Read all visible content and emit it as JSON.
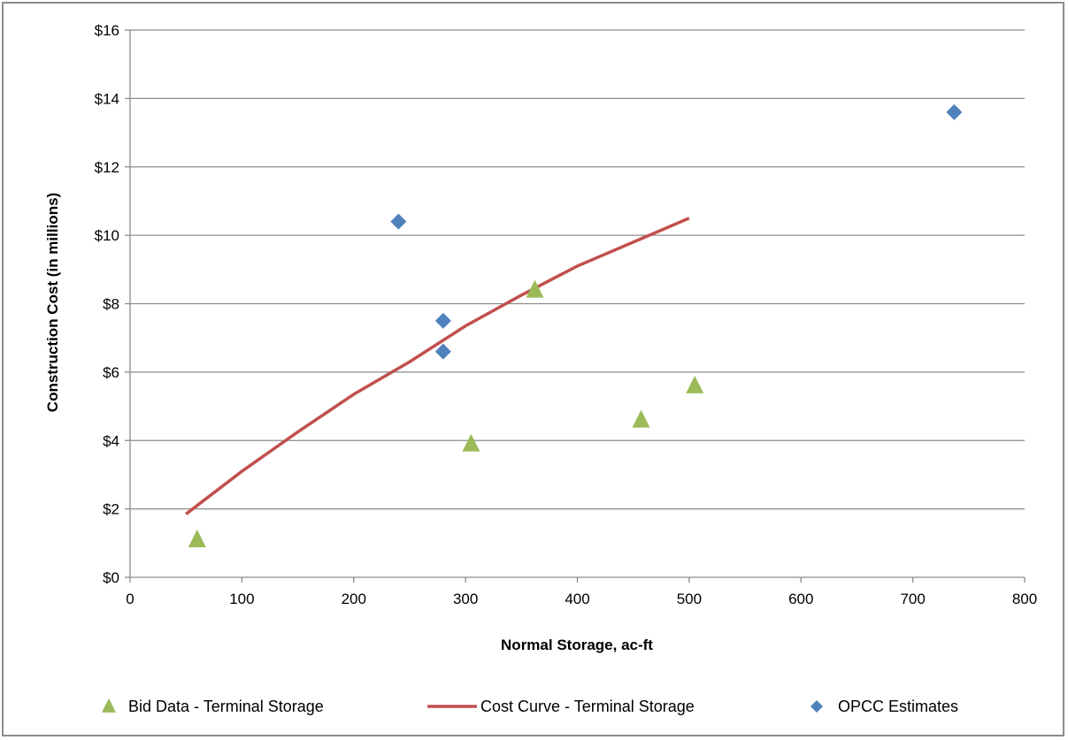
{
  "chart_data": {
    "type": "scatter",
    "title": "",
    "xlabel": "Normal Storage, ac-ft",
    "ylabel": "Construction Cost (in millions)",
    "xlim": [
      0,
      800
    ],
    "ylim": [
      0,
      16
    ],
    "x_ticks": [
      0,
      100,
      200,
      300,
      400,
      500,
      600,
      700,
      800
    ],
    "y_ticks": [
      0,
      2,
      4,
      6,
      8,
      10,
      12,
      14,
      16
    ],
    "x_tick_labels": [
      "0",
      "100",
      "200",
      "300",
      "400",
      "500",
      "600",
      "700",
      "800"
    ],
    "y_tick_labels": [
      "$0",
      "$2",
      "$4",
      "$6",
      "$8",
      "$10",
      "$12",
      "$14",
      "$16"
    ],
    "grid": "horizontal",
    "legend_position": "bottom",
    "series": [
      {
        "name": "Bid Data - Terminal Storage",
        "kind": "triangle",
        "color": "#9bbb59",
        "points": [
          [
            60,
            1.1
          ],
          [
            305,
            3.9
          ],
          [
            362,
            8.4
          ],
          [
            457,
            4.6
          ],
          [
            505,
            5.6
          ]
        ]
      },
      {
        "name": "Cost Curve - Terminal Storage",
        "kind": "line",
        "color": "#c0504d",
        "points": [
          [
            50,
            1.85
          ],
          [
            100,
            3.1
          ],
          [
            150,
            4.25
          ],
          [
            200,
            5.35
          ],
          [
            250,
            6.3
          ],
          [
            300,
            7.35
          ],
          [
            350,
            8.25
          ],
          [
            400,
            9.1
          ],
          [
            450,
            9.8
          ],
          [
            500,
            10.5
          ]
        ]
      },
      {
        "name": "OPCC Estimates",
        "kind": "diamond",
        "color": "#4f81bd",
        "points": [
          [
            240,
            10.4
          ],
          [
            280,
            7.5
          ],
          [
            280,
            6.6
          ],
          [
            737,
            13.6
          ]
        ]
      }
    ]
  }
}
